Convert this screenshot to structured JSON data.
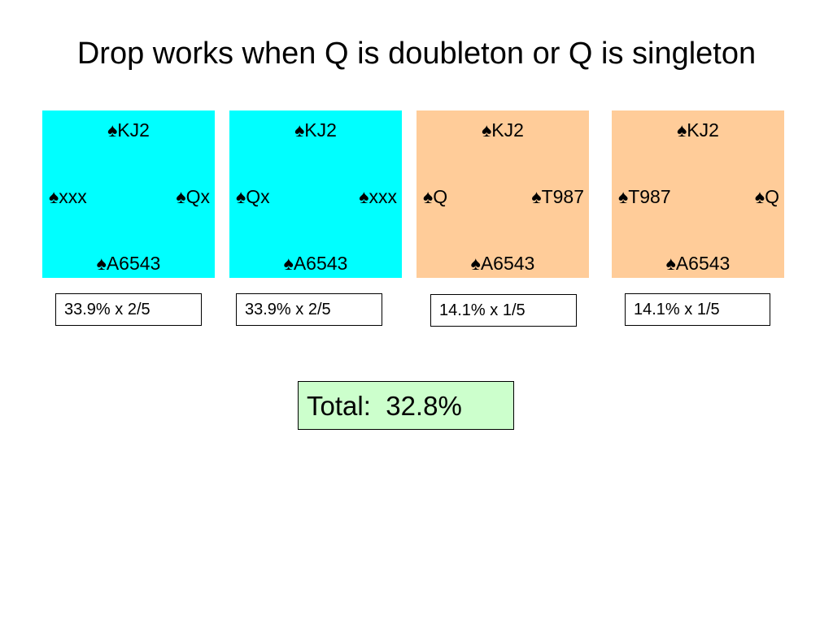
{
  "slide": {
    "title": "Drop works when Q is doubleton or Q is singleton"
  },
  "colors": {
    "cyan_fill": "#00FFFF",
    "peach_fill": "#FFCC99",
    "total_fill": "#CCFFCC",
    "text": "#000000"
  },
  "deals": [
    {
      "north": "♠KJ2",
      "west": "♠xxx",
      "east": "♠Qx",
      "south": "♠A6543",
      "fill": "#00FFFF"
    },
    {
      "north": "♠KJ2",
      "west": "♠Qx",
      "east": "♠xxx",
      "south": "♠A6543",
      "fill": "#00FFFF"
    },
    {
      "north": "♠KJ2",
      "west": "♠Q",
      "east": "♠T987",
      "south": "♠A6543",
      "fill": "#FFCC99"
    },
    {
      "north": "♠KJ2",
      "west": "♠T987",
      "east": "♠Q",
      "south": "♠A6543",
      "fill": "#FFCC99"
    }
  ],
  "calculations": [
    "33.9% x 2/5",
    "33.9% x 2/5",
    "14.1% x 1/5",
    "14.1% x 1/5"
  ],
  "total": {
    "label": "Total:  32.8%",
    "fill": "#CCFFCC"
  }
}
